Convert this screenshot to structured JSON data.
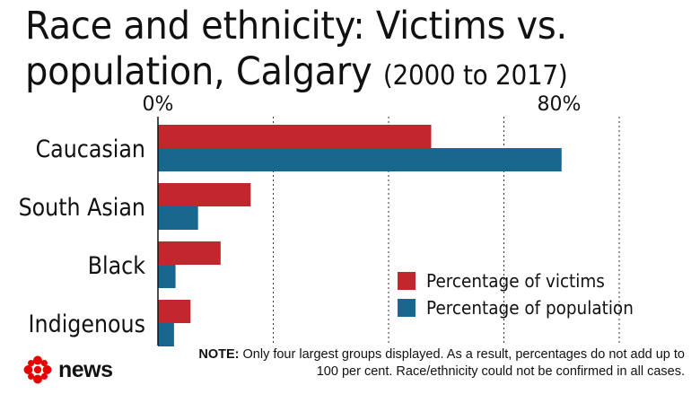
{
  "title": {
    "main": "Race and ethnicity: Victims vs. population, Calgary",
    "sub": "(2000 to 2017)"
  },
  "note": {
    "label": "NOTE:",
    "text": "Only four largest groups displayed. As a result, percentages do not add up to 100 per cent. Race/ethnicity could not be confirmed in all cases."
  },
  "brand": {
    "name": "news",
    "logo_icon": "cbc-gem-icon"
  },
  "colors": {
    "victims": "#c1272d",
    "population": "#17678e"
  },
  "chart_data": {
    "type": "bar",
    "orientation": "horizontal",
    "title": "Race and ethnicity: Victims vs. population, Calgary (2000 to 2017)",
    "categories": [
      "Caucasian",
      "South Asian",
      "Black",
      "Indigenous"
    ],
    "series": [
      {
        "name": "Percentage of victims",
        "values": [
          54.5,
          18.5,
          12.5,
          6.5
        ]
      },
      {
        "name": "Percentage of population",
        "values": [
          80.5,
          8,
          3.5,
          3.2
        ]
      }
    ],
    "x_tick_labels": [
      "0%",
      "80%"
    ],
    "xlim": [
      0,
      92
    ],
    "gridlines_at": [
      23,
      46,
      69,
      92
    ],
    "grid": "dotted vertical",
    "legend_position": "bottom-right"
  }
}
